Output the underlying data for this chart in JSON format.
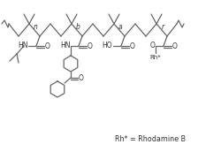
{
  "bg_color": "#ffffff",
  "line_color": "#666666",
  "text_color": "#333333",
  "figsize": [
    2.5,
    1.72
  ],
  "dpi": 100,
  "subscripts": [
    "n",
    "b",
    "a",
    "r"
  ],
  "annotation": "Rh* = Rhodamine B"
}
